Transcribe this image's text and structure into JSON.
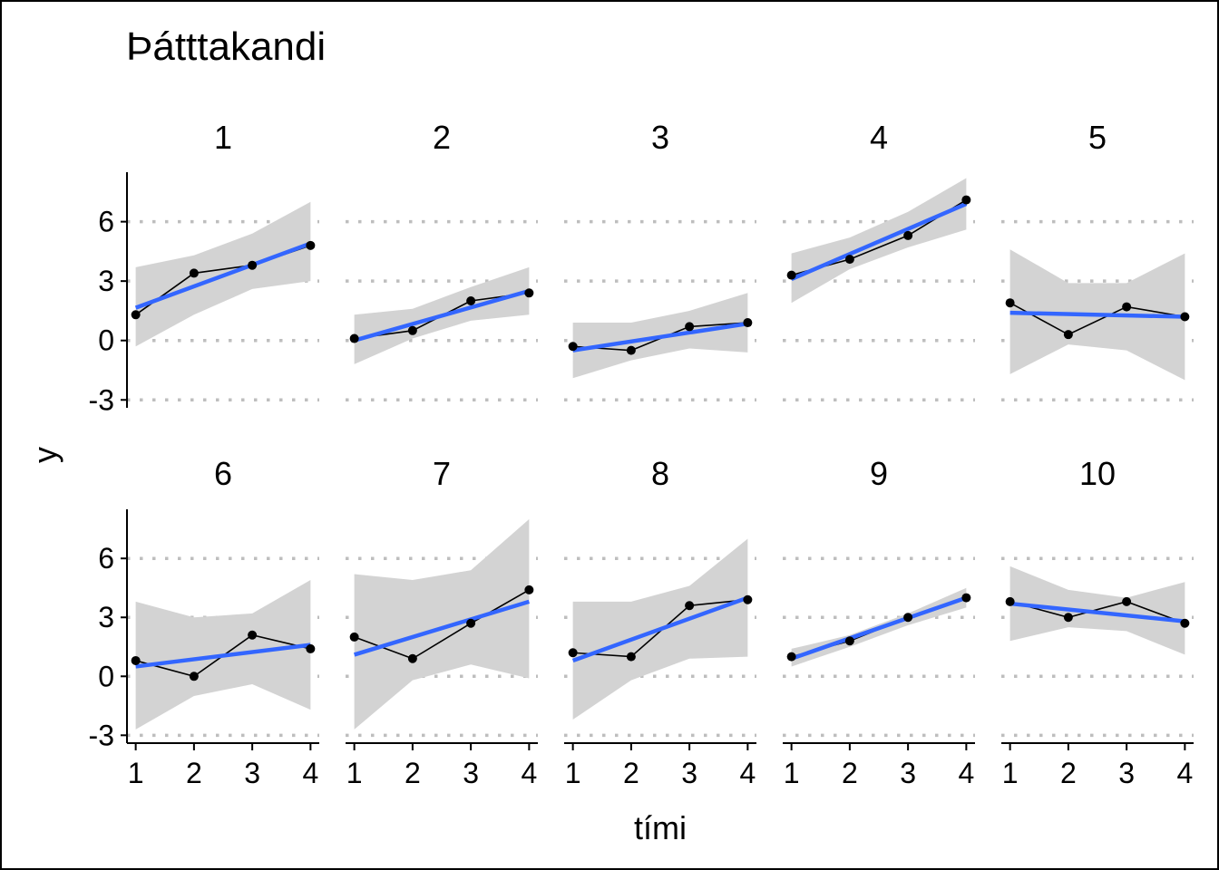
{
  "chart_data": {
    "type": "line",
    "title": "Þátttakandi",
    "xlabel": "tími",
    "ylabel": "y",
    "x_ticks": [
      "1",
      "2",
      "3",
      "4"
    ],
    "y_ticks": [
      "-3",
      "0",
      "3",
      "6"
    ],
    "y_tick_values": [
      -3,
      0,
      3,
      6
    ],
    "xlim": [
      0.85,
      4.15
    ],
    "ylim": [
      -3.4,
      8.5
    ],
    "grid": "horizontal dotted",
    "layout": "facets 2 rows x 5 columns",
    "colors": {
      "observed": "#000000",
      "fit_line": "#3366FF",
      "confidence_band": "#D3D3D3",
      "grid": "#BEBEBE"
    },
    "x": [
      1,
      2,
      3,
      4
    ],
    "facets": [
      {
        "label": "1",
        "observed": [
          1.3,
          3.4,
          3.8,
          4.8
        ],
        "fit": [
          1.65,
          4.9
        ],
        "ci_lower": [
          -0.3,
          1.3,
          2.6,
          3.0
        ],
        "ci_upper": [
          3.7,
          4.3,
          5.4,
          7.0
        ]
      },
      {
        "label": "2",
        "observed": [
          0.1,
          0.5,
          2.0,
          2.4
        ],
        "fit": [
          0.0,
          2.5
        ],
        "ci_lower": [
          -1.2,
          0.1,
          1.0,
          1.3
        ],
        "ci_upper": [
          1.3,
          1.6,
          2.7,
          3.7
        ]
      },
      {
        "label": "3",
        "observed": [
          -0.3,
          -0.5,
          0.7,
          0.9
        ],
        "fit": [
          -0.5,
          0.85
        ],
        "ci_lower": [
          -1.9,
          -1.0,
          -0.4,
          -0.6
        ],
        "ci_upper": [
          0.9,
          0.9,
          1.5,
          2.4
        ]
      },
      {
        "label": "4",
        "observed": [
          3.3,
          4.1,
          5.3,
          7.1
        ],
        "fit": [
          3.1,
          6.9
        ],
        "ci_lower": [
          1.9,
          3.6,
          4.7,
          5.6
        ],
        "ci_upper": [
          4.4,
          5.2,
          6.5,
          8.2
        ]
      },
      {
        "label": "5",
        "observed": [
          1.9,
          0.3,
          1.7,
          1.2
        ],
        "fit": [
          1.4,
          1.2
        ],
        "ci_lower": [
          -1.7,
          -0.2,
          -0.5,
          -2.0
        ],
        "ci_upper": [
          4.6,
          2.9,
          2.9,
          4.4
        ]
      },
      {
        "label": "6",
        "observed": [
          0.8,
          0.0,
          2.1,
          1.4
        ],
        "fit": [
          0.5,
          1.6
        ],
        "ci_lower": [
          -2.7,
          -1.0,
          -0.4,
          -1.7
        ],
        "ci_upper": [
          3.8,
          3.0,
          3.2,
          4.9
        ]
      },
      {
        "label": "7",
        "observed": [
          2.0,
          0.9,
          2.7,
          4.4
        ],
        "fit": [
          1.1,
          3.8
        ],
        "ci_lower": [
          -2.7,
          -0.2,
          0.6,
          -0.1
        ],
        "ci_upper": [
          5.2,
          4.9,
          5.4,
          8.0
        ]
      },
      {
        "label": "8",
        "observed": [
          1.2,
          1.0,
          3.6,
          3.9
        ],
        "fit": [
          0.8,
          4.0
        ],
        "ci_lower": [
          -2.2,
          -0.2,
          0.9,
          1.0
        ],
        "ci_upper": [
          3.8,
          3.8,
          4.6,
          7.0
        ]
      },
      {
        "label": "9",
        "observed": [
          1.0,
          1.8,
          3.0,
          4.0
        ],
        "fit": [
          0.9,
          4.0
        ],
        "ci_lower": [
          0.5,
          1.5,
          2.6,
          3.5
        ],
        "ci_upper": [
          1.4,
          2.1,
          3.2,
          4.5
        ]
      },
      {
        "label": "10",
        "observed": [
          3.8,
          3.0,
          3.8,
          2.7
        ],
        "fit": [
          3.7,
          2.8
        ],
        "ci_lower": [
          1.8,
          2.5,
          2.3,
          1.1
        ],
        "ci_upper": [
          5.6,
          4.4,
          4.0,
          4.8
        ]
      }
    ]
  }
}
